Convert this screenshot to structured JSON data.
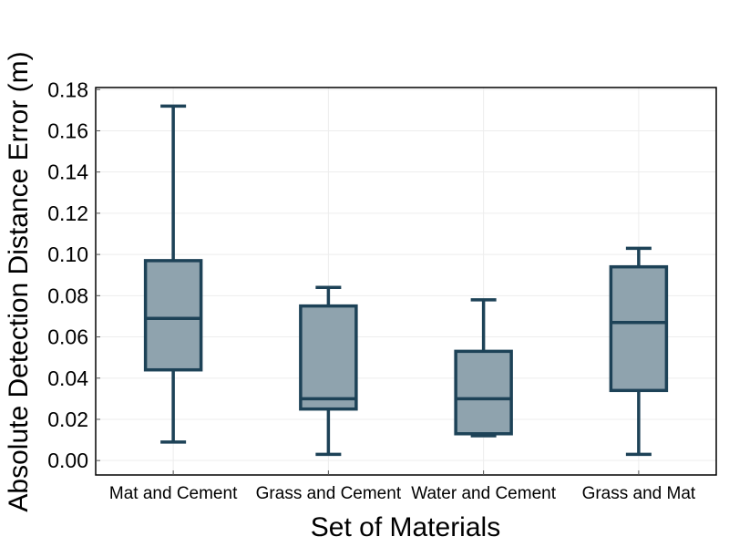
{
  "chart_data": {
    "type": "box",
    "title": "",
    "xlabel": "Set of Materials",
    "ylabel": "Absolute Detection Distance Error (m)",
    "ylim": [
      -0.007,
      0.181
    ],
    "yticks": [
      0.0,
      0.02,
      0.04,
      0.06,
      0.08,
      0.1,
      0.12,
      0.14,
      0.16,
      0.18
    ],
    "ytick_labels": [
      "0.00",
      "0.02",
      "0.04",
      "0.06",
      "0.08",
      "0.10",
      "0.12",
      "0.14",
      "0.16",
      "0.18"
    ],
    "grid": true,
    "categories": [
      "Mat and Cement",
      "Grass and Cement",
      "Water and Cement",
      "Grass and Mat"
    ],
    "boxes": [
      {
        "whisker_low": 0.009,
        "q1": 0.044,
        "median": 0.069,
        "q3": 0.097,
        "whisker_high": 0.172
      },
      {
        "whisker_low": 0.003,
        "q1": 0.025,
        "median": 0.03,
        "q3": 0.075,
        "whisker_high": 0.084
      },
      {
        "whisker_low": 0.012,
        "q1": 0.013,
        "median": 0.03,
        "q3": 0.053,
        "whisker_high": 0.078
      },
      {
        "whisker_low": 0.003,
        "q1": 0.034,
        "median": 0.067,
        "q3": 0.094,
        "whisker_high": 0.103
      }
    ],
    "colors": {
      "box_fill": "#8fa3ae",
      "box_edge": "#1d4257",
      "grid": "#ededed",
      "frame": "#000000"
    }
  }
}
